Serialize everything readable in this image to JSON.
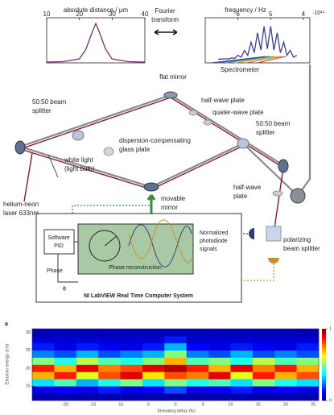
{
  "inset_left": {
    "type": "line",
    "title": "absolute distance / μm",
    "x": [
      10,
      15,
      20,
      22,
      24,
      25,
      26,
      28,
      30,
      35,
      40
    ],
    "values": [
      0.02,
      0.03,
      0.1,
      0.35,
      0.8,
      1,
      0.8,
      0.35,
      0.1,
      0.03,
      0.02
    ],
    "xlim": [
      10,
      40
    ],
    "xticks": [
      10,
      20,
      30,
      40
    ],
    "ylim": [
      0,
      1.15
    ],
    "color": "#7a2f6e"
  },
  "inset_right": {
    "type": "line",
    "title": "frequency / Hz",
    "exponent": "·10¹⁴",
    "x": [
      6.6,
      6.5,
      6.4,
      6.3,
      6.2,
      6.1,
      6.0,
      5.9,
      5.8,
      5.7,
      5.6,
      5.5,
      5.4,
      5.3,
      5.2,
      5.1,
      5.0,
      4.9,
      4.8,
      4.7,
      4.6,
      4.5,
      4.4,
      4.3,
      4.2
    ],
    "values": [
      0.1,
      0.1,
      0.11,
      0.1,
      0.13,
      0.12,
      0.2,
      0.15,
      0.33,
      0.2,
      0.55,
      0.27,
      0.8,
      0.34,
      0.97,
      0.37,
      0.97,
      0.34,
      0.8,
      0.27,
      0.55,
      0.2,
      0.33,
      0.15,
      0.2
    ],
    "xlim": [
      7,
      3.8
    ],
    "xticks": [
      6,
      5,
      4
    ],
    "ylim": [
      0,
      1.2
    ],
    "color": "#3a3f8f"
  },
  "labels": {
    "fourier": [
      "Fourier",
      "transform"
    ],
    "spectrometer": "Spectrometer",
    "flat_mirror": "flat mirror",
    "half_wave_top": "half-wave plate",
    "quarter_wave": "quater-wave plate",
    "splitter_left": [
      "50:50 beam",
      "splitter"
    ],
    "splitter_right": [
      "50:50 beam",
      "splitter"
    ],
    "glass_plate": [
      "dispersion-compensating",
      "glass plate"
    ],
    "white_light": [
      "white light",
      "(light bulb)"
    ],
    "half_wave_right": [
      "half-wave",
      "plate"
    ],
    "laser": [
      "helium-neon",
      "laser 633nm"
    ],
    "movable_mirror": [
      "movable",
      "mirror"
    ],
    "software_pid": [
      "Software",
      "PID"
    ],
    "phase": "Phase",
    "phi": "ϕ",
    "phase_reconstruction": "Phase reconstruction",
    "photodiode": [
      "Normalized",
      "photodiode",
      "signals"
    ],
    "polarizing": [
      "polarizing",
      "beam splitter"
    ],
    "system": "NI LabVIEW Real Time Computer System"
  },
  "heatmap": {
    "type": "heatmap",
    "panel_label": "a",
    "x_label": "Streaking delay (fs)",
    "y_label": "Electron energy (eV)",
    "x": [
      -24,
      -20,
      -16,
      -12,
      -8,
      -4,
      0,
      4,
      8,
      12,
      16,
      20,
      24
    ],
    "y": [
      12,
      14,
      16,
      18,
      20,
      22,
      24,
      26,
      28,
      30
    ],
    "z": [
      [
        0.05,
        0.05,
        0.05,
        0.05,
        0.05,
        0.05,
        0.05,
        0.05,
        0.05,
        0.05,
        0.05,
        0.05,
        0.05
      ],
      [
        0.1,
        0.12,
        0.1,
        0.15,
        0.1,
        0.12,
        0.2,
        0.1,
        0.12,
        0.15,
        0.1,
        0.12,
        0.1
      ],
      [
        0.35,
        0.45,
        0.3,
        0.4,
        0.5,
        0.35,
        0.5,
        0.4,
        0.45,
        0.35,
        0.5,
        0.4,
        0.35
      ],
      [
        0.7,
        0.85,
        0.6,
        0.8,
        0.9,
        0.65,
        0.8,
        0.75,
        0.9,
        0.6,
        0.85,
        0.7,
        0.8
      ],
      [
        0.85,
        0.7,
        0.9,
        0.75,
        0.8,
        0.9,
        0.95,
        0.85,
        0.7,
        0.9,
        0.75,
        0.85,
        0.7
      ],
      [
        0.5,
        0.4,
        0.55,
        0.45,
        0.4,
        0.5,
        0.7,
        0.45,
        0.5,
        0.4,
        0.55,
        0.45,
        0.5
      ],
      [
        0.25,
        0.2,
        0.3,
        0.2,
        0.25,
        0.3,
        0.5,
        0.25,
        0.2,
        0.3,
        0.2,
        0.25,
        0.2
      ],
      [
        0.15,
        0.1,
        0.15,
        0.12,
        0.1,
        0.15,
        0.3,
        0.12,
        0.1,
        0.15,
        0.12,
        0.1,
        0.15
      ],
      [
        0.08,
        0.08,
        0.08,
        0.08,
        0.08,
        0.08,
        0.15,
        0.08,
        0.08,
        0.08,
        0.08,
        0.08,
        0.08
      ],
      [
        0.05,
        0.05,
        0.05,
        0.05,
        0.05,
        0.05,
        0.05,
        0.05,
        0.05,
        0.05,
        0.05,
        0.05,
        0.05
      ]
    ],
    "xlim": [
      -26,
      26
    ],
    "ylim": [
      11,
      31
    ],
    "xticks": [
      -20,
      -15,
      -10,
      -5,
      0,
      5,
      10,
      15,
      20,
      25
    ],
    "yticks": [
      15,
      20,
      25,
      30
    ],
    "clim": [
      0,
      1
    ],
    "colorbar_ticks": [
      0,
      1
    ]
  }
}
